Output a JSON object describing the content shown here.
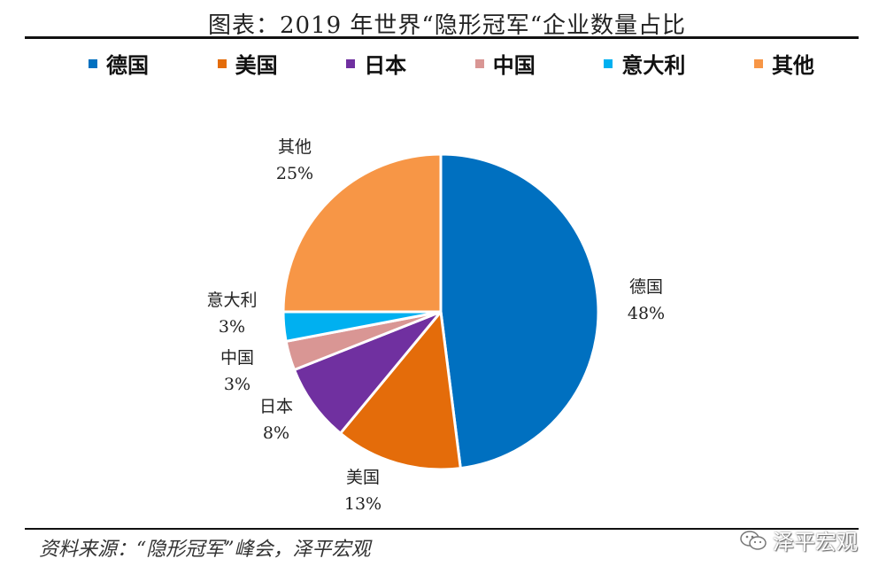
{
  "chart_data": {
    "type": "pie",
    "title": "图表：2019 年世界“隐形冠军“企业数量占比",
    "slices": [
      {
        "name": "德国",
        "value": 48,
        "label": "48%",
        "color": "#0070C0"
      },
      {
        "name": "美国",
        "value": 13,
        "label": "13%",
        "color": "#E46C0A"
      },
      {
        "name": "日本",
        "value": 8,
        "label": "8%",
        "color": "#7030A0"
      },
      {
        "name": "中国",
        "value": 3,
        "label": "3%",
        "color": "#D99694"
      },
      {
        "name": "意大利",
        "value": 3,
        "label": "3%",
        "color": "#00B0F0"
      },
      {
        "name": "其他",
        "value": 25,
        "label": "25%",
        "color": "#F79646"
      }
    ],
    "legend_position": "top"
  },
  "source": "资料来源：“隐形冠军”峰会，泽平宏观",
  "watermark": "泽平宏观"
}
